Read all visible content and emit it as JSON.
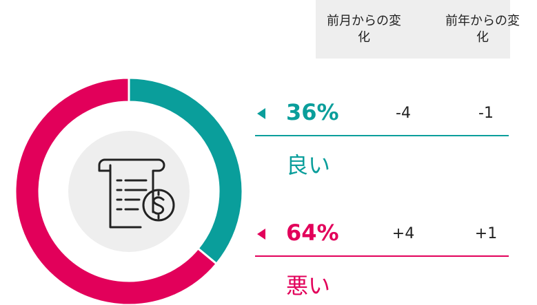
{
  "chart_data": {
    "type": "donut",
    "categories": [
      "良い",
      "悪い"
    ],
    "values": [
      36,
      64
    ],
    "value_labels": [
      "36%",
      "64%"
    ],
    "colors": [
      "#0a9e9b",
      "#e2005a"
    ]
  },
  "table": {
    "columns": [
      "前月からの変化",
      "前年からの変化"
    ],
    "rows": [
      [
        "-4",
        "-1"
      ],
      [
        "+4",
        "+1"
      ]
    ]
  }
}
